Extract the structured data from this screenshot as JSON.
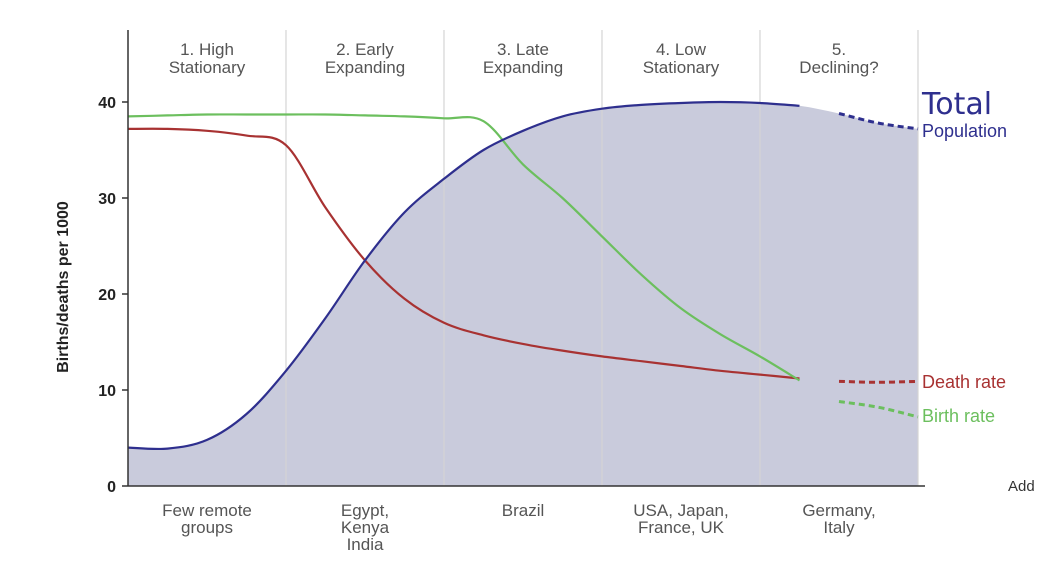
{
  "chart_data": {
    "type": "line",
    "ylabel": "Births/deaths per 1000",
    "ylim": [
      0,
      45
    ],
    "yticks": [
      0,
      10,
      20,
      30,
      40
    ],
    "grid": false,
    "legend": "inline-right",
    "stages": [
      {
        "label_lines": [
          "1. High",
          "Stationary"
        ],
        "countries_lines": [
          "Few remote",
          "groups"
        ]
      },
      {
        "label_lines": [
          "2. Early",
          "Expanding"
        ],
        "countries_lines": [
          "Egypt,",
          "Kenya",
          "India"
        ]
      },
      {
        "label_lines": [
          "3. Late",
          "Expanding"
        ],
        "countries_lines": [
          "Brazil"
        ]
      },
      {
        "label_lines": [
          "4. Low",
          "Stationary"
        ],
        "countries_lines": [
          "USA, Japan,",
          "France, UK"
        ]
      },
      {
        "label_lines": [
          "5.",
          "Declining?"
        ],
        "countries_lines": [
          "Germany,",
          "Italy"
        ]
      }
    ],
    "x": [
      0,
      0.25,
      0.5,
      0.75,
      1,
      1.25,
      1.5,
      1.75,
      2,
      2.25,
      2.5,
      2.75,
      3,
      3.25,
      3.5,
      3.75,
      4,
      4.25,
      4.5,
      4.75,
      5
    ],
    "solid_until_x": 4.4,
    "series": [
      {
        "name": "Birth rate",
        "color": "#6cbf5e",
        "values": [
          38.5,
          38.6,
          38.7,
          38.7,
          38.7,
          38.7,
          38.6,
          38.5,
          38.3,
          38.0,
          33.5,
          30.0,
          26.0,
          22.0,
          18.5,
          15.8,
          13.5,
          11.0,
          8.8,
          8.2,
          7.2
        ]
      },
      {
        "name": "Death rate",
        "color": "#a83232",
        "values": [
          37.2,
          37.2,
          37.0,
          36.5,
          35.5,
          29.0,
          23.5,
          19.5,
          17.0,
          15.7,
          14.8,
          14.1,
          13.5,
          13.0,
          12.5,
          12.0,
          11.6,
          11.2,
          10.9,
          10.8,
          10.9
        ]
      },
      {
        "name": "Population",
        "color": "#2e2f8e",
        "fill": "#c9cbdc",
        "values": [
          4.0,
          3.9,
          4.8,
          7.5,
          12.0,
          17.5,
          23.5,
          28.5,
          32.0,
          35.0,
          37.0,
          38.5,
          39.3,
          39.7,
          39.9,
          40.0,
          39.9,
          39.6,
          38.8,
          37.8,
          37.2
        ]
      }
    ],
    "labels": {
      "total": "Total",
      "population": "Population",
      "death": "Death rate",
      "birth": "Birth rate"
    },
    "cropped_text": "Add"
  }
}
